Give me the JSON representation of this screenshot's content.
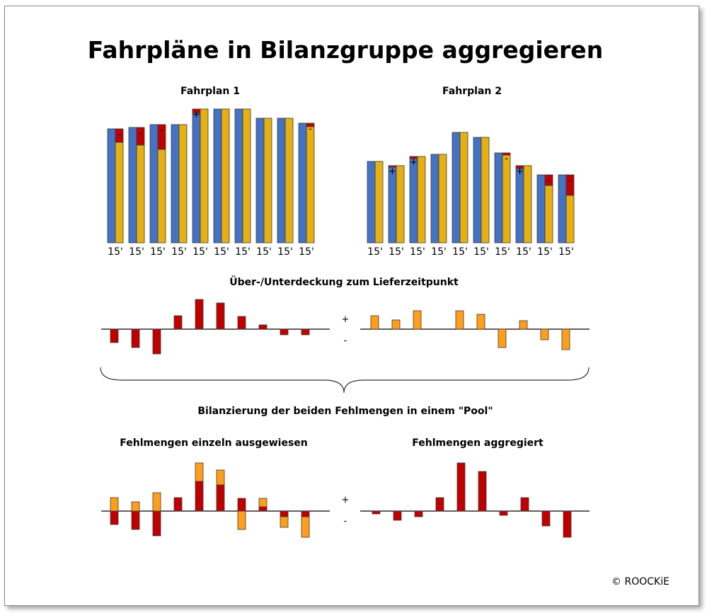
{
  "title": "Fahrpläne in Bilanzgruppe aggregieren",
  "copyright": "© ROOCKiE",
  "colors": {
    "plan": "#4472c4",
    "actual": "#e6b010",
    "deviation_plan1": "#c00000",
    "deviation_plan2": "#ff9e1b",
    "axis": "#000000"
  },
  "plan_charts": [
    {
      "title": "Fahrplan 1",
      "interval_label": "15'",
      "plan": [
        16.1,
        16.3,
        16.7,
        16.7,
        18.3,
        18.9,
        18.9,
        17.6,
        17.6,
        16.9
      ],
      "actual": [
        14.2,
        13.8,
        13.2,
        16.7,
        18.9,
        18.9,
        18.9,
        17.6,
        17.6,
        16.4
      ]
    },
    {
      "title": "Fahrplan 2",
      "interval_label": "15'",
      "plan": [
        11.5,
        10.7,
        11.9,
        12.5,
        15.6,
        14.9,
        12.7,
        10.5,
        9.6,
        9.6
      ],
      "actual": [
        11.5,
        10.9,
        12.2,
        12.5,
        15.6,
        14.9,
        12.4,
        10.9,
        8.1,
        6.7
      ]
    }
  ],
  "deviation_section": {
    "title": "Über-/Unterdeckung zum Lieferzeitpunkt",
    "plus": "+",
    "minus": "-",
    "fahrplan1": [
      -1.9,
      -2.6,
      -3.5,
      1.9,
      4.2,
      3.7,
      1.8,
      0.6,
      -0.8,
      -0.8
    ],
    "fahrplan2": [
      1.9,
      1.3,
      2.6,
      0,
      2.6,
      2.1,
      -2.6,
      1.2,
      -1.5,
      -2.9
    ]
  },
  "pool_label": "Bilanzierung der beiden Fehlmengen in einem \"Pool\"",
  "result_section": {
    "individual_title": "Fehlmengen einzeln ausgewiesen",
    "aggregated_title": "Fehlmengen aggregiert",
    "plus": "+",
    "minus": "-",
    "aggregated": [
      -0.4,
      -1.3,
      -0.8,
      1.9,
      6.8,
      5.6,
      -0.6,
      1.9,
      -2.1,
      -3.7
    ]
  }
}
